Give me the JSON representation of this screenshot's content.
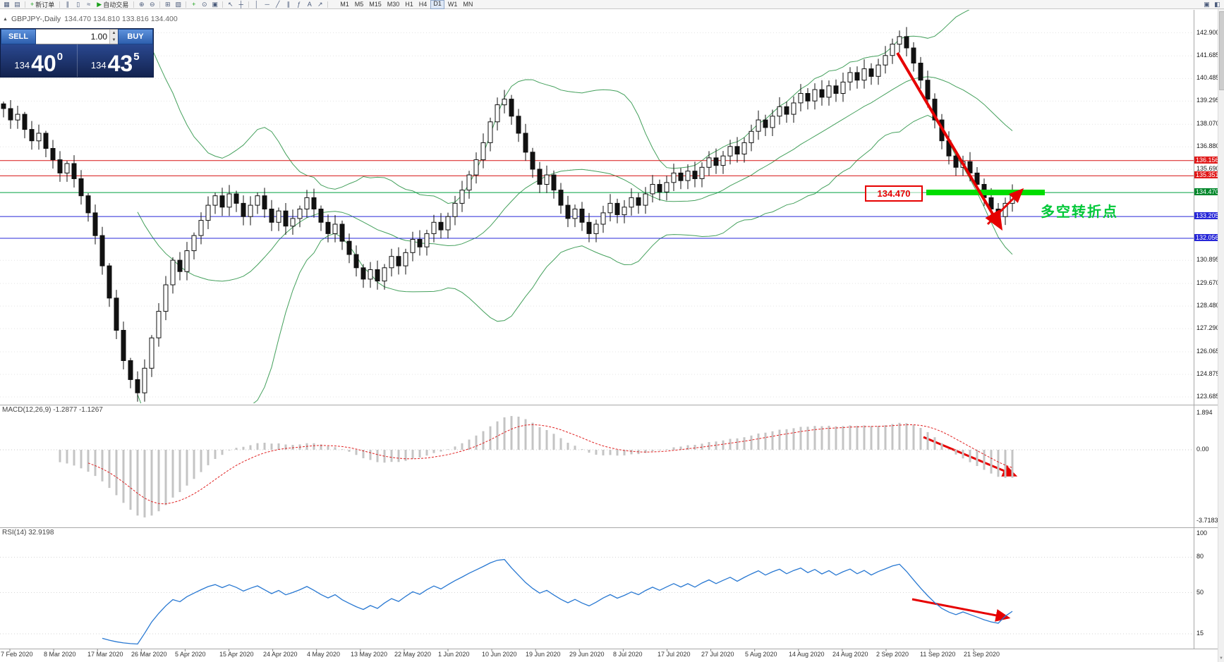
{
  "toolbar": {
    "icons": [
      {
        "name": "new-chart-icon",
        "glyph": "▦"
      },
      {
        "name": "profiles-icon",
        "glyph": "▤"
      },
      {
        "name": "sep"
      },
      {
        "name": "new-order-button",
        "glyph": "+",
        "glyph_color": "#18a018",
        "label": "新订单"
      },
      {
        "name": "sep"
      },
      {
        "name": "bar-chart-icon",
        "glyph": "∥"
      },
      {
        "name": "candlestick-chart-icon",
        "glyph": "▯"
      },
      {
        "name": "line-chart-icon",
        "glyph": "≈"
      },
      {
        "name": "auto-trading-button",
        "glyph": "▶",
        "glyph_color": "#18a018",
        "label": "自动交易"
      },
      {
        "name": "sep"
      },
      {
        "name": "zoom-in-icon",
        "glyph": "⊕"
      },
      {
        "name": "zoom-out-icon",
        "glyph": "⊖"
      },
      {
        "name": "sep"
      },
      {
        "name": "tile-windows-icon",
        "glyph": "⊞"
      },
      {
        "name": "cascade-windows-icon",
        "glyph": "▧"
      },
      {
        "name": "sep"
      },
      {
        "name": "indicators-icon",
        "glyph": "+",
        "glyph_color": "#18a018"
      },
      {
        "name": "periods-icon",
        "glyph": "⊙"
      },
      {
        "name": "templates-icon",
        "glyph": "▣"
      },
      {
        "name": "sep"
      },
      {
        "name": "cursor-icon",
        "glyph": "↖"
      },
      {
        "name": "crosshair-icon",
        "glyph": "┼"
      },
      {
        "name": "sep"
      },
      {
        "name": "vertical-line-icon",
        "glyph": "│"
      },
      {
        "name": "horizontal-line-icon",
        "glyph": "─"
      },
      {
        "name": "trendline-icon",
        "glyph": "╱"
      },
      {
        "name": "channel-icon",
        "glyph": "∥"
      },
      {
        "name": "fibonacci-icon",
        "glyph": "ƒ"
      },
      {
        "name": "text-label-icon",
        "glyph": "A"
      },
      {
        "name": "arrow-object-icon",
        "glyph": "↗"
      },
      {
        "name": "sep"
      }
    ],
    "timeframes": [
      "M1",
      "M5",
      "M15",
      "M30",
      "H1",
      "H4",
      "D1",
      "W1",
      "MN"
    ],
    "active_timeframe": "D1",
    "right_icons": [
      {
        "name": "chart-shift-icon",
        "glyph": "▣"
      },
      {
        "name": "chart-autoscroll-icon",
        "glyph": "◧"
      }
    ]
  },
  "header": {
    "symbol": "GBPJPY-,Daily",
    "ohlc": "134.470 134.810 133.816 134.400"
  },
  "trade_panel": {
    "sell_label": "SELL",
    "buy_label": "BUY",
    "volume": "1.00",
    "sell_price": {
      "prefix": "134",
      "big": "40",
      "sup": "0"
    },
    "buy_price": {
      "prefix": "134",
      "big": "43",
      "sup": "5"
    }
  },
  "price_axis": [
    {
      "text": "142.900",
      "price": 142.9,
      "style": "plain"
    },
    {
      "text": "141.685",
      "price": 141.685,
      "style": "plain"
    },
    {
      "text": "140.485",
      "price": 140.485,
      "style": "plain"
    },
    {
      "text": "139.295",
      "price": 139.295,
      "style": "plain"
    },
    {
      "text": "138.070",
      "price": 138.07,
      "style": "plain"
    },
    {
      "text": "136.880",
      "price": 136.88,
      "style": "plain"
    },
    {
      "text": "136.156",
      "price": 136.156,
      "style": "red"
    },
    {
      "text": "135.690",
      "price": 135.69,
      "style": "plain"
    },
    {
      "text": "135.351",
      "price": 135.351,
      "style": "red"
    },
    {
      "text": "134.470",
      "price": 134.47,
      "style": "green"
    },
    {
      "text": "133.205",
      "price": 133.205,
      "style": "blue"
    },
    {
      "text": "132.056",
      "price": 132.056,
      "style": "blue"
    },
    {
      "text": "130.895",
      "price": 130.895,
      "style": "plain"
    },
    {
      "text": "129.670",
      "price": 129.67,
      "style": "plain"
    },
    {
      "text": "128.480",
      "price": 128.48,
      "style": "plain"
    },
    {
      "text": "127.290",
      "price": 127.29,
      "style": "plain"
    },
    {
      "text": "126.065",
      "price": 126.065,
      "style": "plain"
    },
    {
      "text": "124.875",
      "price": 124.875,
      "style": "plain"
    },
    {
      "text": "123.685",
      "price": 123.685,
      "style": "plain"
    }
  ],
  "hlines": [
    {
      "price": 136.156,
      "color": "#d81616"
    },
    {
      "price": 135.351,
      "color": "#d81616"
    },
    {
      "price": 134.47,
      "color": "#00a040"
    },
    {
      "price": 133.205,
      "color": "#2828d8"
    },
    {
      "price": 132.056,
      "color": "#2828d8"
    }
  ],
  "annotations": {
    "callout": "134.470",
    "turning_label": "多空转折点",
    "thick_line_color": "#00dd00",
    "arrow_color": "#e60000",
    "arrows": [
      "downtrend-arrow-main",
      "bounce-arrow-main",
      "downtrend-arrow-macd",
      "downtrend-arrow-rsi"
    ]
  },
  "macd": {
    "label": "MACD(12,26,9)",
    "values": "-1.2877 -1.1267",
    "axis": [
      "1.894",
      "0.00",
      "-3.7183"
    ]
  },
  "rsi": {
    "label": "RSI(14)",
    "value": "32.9198",
    "axis": [
      "100",
      "80",
      "50",
      "15"
    ]
  },
  "chart_data": {
    "type": "candlestick",
    "symbol": "GBPJPY",
    "period": "Daily",
    "title": "GBPJPY-,Daily",
    "ohlc_display": {
      "open": 134.47,
      "high": 134.81,
      "low": 133.816,
      "close": 134.4
    },
    "y_range": [
      123.685,
      142.9
    ],
    "levels": {
      "resistance": [
        136.156,
        135.351
      ],
      "pivot": 134.47,
      "support": [
        133.205,
        132.056
      ]
    },
    "indicators": {
      "bollinger": {
        "period": 20,
        "deviation": 2
      },
      "macd": {
        "fast": 12,
        "slow": 26,
        "signal": 9,
        "value": -1.2877,
        "signal_value": -1.1267,
        "axis_range": [
          -3.7183,
          1.894
        ]
      },
      "rsi": {
        "period": 14,
        "value": 32.9198,
        "axis_ticks": [
          100,
          80,
          50,
          15
        ]
      }
    },
    "dates": [
      "7 Feb 2020",
      "8 Mar 2020",
      "17 Mar 2020",
      "26 Mar 2020",
      "5 Apr 2020",
      "15 Apr 2020",
      "24 Apr 2020",
      "4 May 2020",
      "13 May 2020",
      "22 May 2020",
      "1 Jun 2020",
      "10 Jun 2020",
      "19 Jun 2020",
      "29 Jun 2020",
      "8 Jul 2020",
      "17 Jul 2020",
      "27 Jul 2020",
      "5 Aug 2020",
      "14 Aug 2020",
      "24 Aug 2020",
      "2 Sep 2020",
      "11 Sep 2020",
      "21 Sep 2020"
    ],
    "closes": [
      138.9,
      138.3,
      138.6,
      137.8,
      137.2,
      137.6,
      136.8,
      136.2,
      135.5,
      136.0,
      135.2,
      134.3,
      133.4,
      132.2,
      130.6,
      128.9,
      127.2,
      125.6,
      124.6,
      123.9,
      125.2,
      126.8,
      128.2,
      129.6,
      130.9,
      130.3,
      131.4,
      132.2,
      133.0,
      133.8,
      134.3,
      133.7,
      134.4,
      133.9,
      133.2,
      133.8,
      134.3,
      133.6,
      132.9,
      133.5,
      132.7,
      133.1,
      133.6,
      134.2,
      133.6,
      132.9,
      132.3,
      132.8,
      131.9,
      131.2,
      130.5,
      129.9,
      130.4,
      129.8,
      130.5,
      131.1,
      130.6,
      131.3,
      132.0,
      131.6,
      132.3,
      132.9,
      132.5,
      133.2,
      133.9,
      134.6,
      135.4,
      136.2,
      137.1,
      138.2,
      139.1,
      139.4,
      138.5,
      137.6,
      136.6,
      135.7,
      134.9,
      135.4,
      134.6,
      133.8,
      133.1,
      133.6,
      132.9,
      132.3,
      132.8,
      133.4,
      133.9,
      133.3,
      133.7,
      134.2,
      133.8,
      134.4,
      134.9,
      134.5,
      135.0,
      135.5,
      135.1,
      135.6,
      135.2,
      135.8,
      136.3,
      135.9,
      136.4,
      136.9,
      136.5,
      137.1,
      137.7,
      138.3,
      137.9,
      138.5,
      139.0,
      138.6,
      139.2,
      139.7,
      139.3,
      139.9,
      139.5,
      140.1,
      139.7,
      140.3,
      140.8,
      140.4,
      141.0,
      140.6,
      141.2,
      141.7,
      142.3,
      142.7,
      142.1,
      141.3,
      140.4,
      139.4,
      138.3,
      137.2,
      136.4,
      135.8,
      136.1,
      135.5,
      134.9,
      134.2,
      133.6,
      133.2,
      133.9,
      134.4
    ]
  }
}
